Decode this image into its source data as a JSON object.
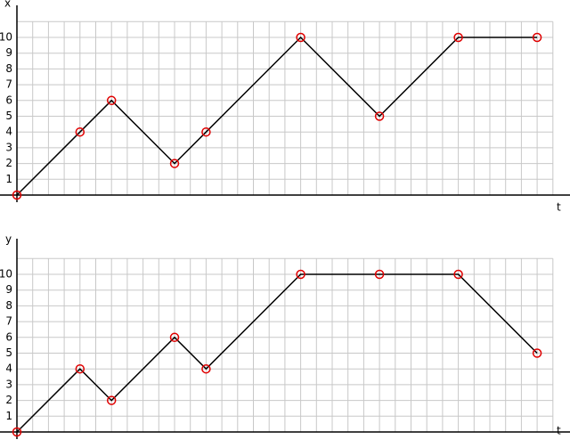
{
  "chart_data": [
    {
      "type": "line",
      "y_label": "x",
      "x_label": "t",
      "x": [
        0,
        4,
        6,
        10,
        12,
        18,
        23,
        28,
        33
      ],
      "series": [
        {
          "color": "#000000",
          "marker_color": "#e00000",
          "values": [
            0,
            4,
            6,
            2,
            4,
            10,
            5,
            10,
            10
          ]
        }
      ],
      "xlim": [
        0,
        34
      ],
      "xticks": [
        0,
        1,
        2,
        3,
        4,
        5,
        6,
        7,
        8,
        9,
        10,
        11,
        12,
        13,
        14,
        15,
        16,
        17,
        18,
        19,
        20,
        21,
        22,
        23,
        24,
        25,
        26,
        27,
        28,
        29,
        30,
        31,
        32,
        33,
        34
      ],
      "ylim": [
        0,
        11
      ],
      "yticks": [
        1,
        2,
        3,
        4,
        5,
        6,
        7,
        8,
        9,
        10
      ],
      "grid": true
    },
    {
      "type": "line",
      "y_label": "y",
      "x_label": "t",
      "x": [
        0,
        4,
        6,
        10,
        12,
        18,
        23,
        28,
        33
      ],
      "series": [
        {
          "color": "#000000",
          "marker_color": "#e00000",
          "values": [
            0,
            4,
            2,
            6,
            4,
            10,
            10,
            10,
            5
          ]
        }
      ],
      "xlim": [
        0,
        34
      ],
      "xticks": [
        0,
        1,
        2,
        3,
        4,
        5,
        6,
        7,
        8,
        9,
        10,
        11,
        12,
        13,
        14,
        15,
        16,
        17,
        18,
        19,
        20,
        21,
        22,
        23,
        24,
        25,
        26,
        27,
        28,
        29,
        30,
        31,
        32,
        33,
        34
      ],
      "ylim": [
        0,
        11
      ],
      "yticks": [
        1,
        2,
        3,
        4,
        5,
        6,
        7,
        8,
        9,
        10
      ],
      "grid": true
    }
  ]
}
